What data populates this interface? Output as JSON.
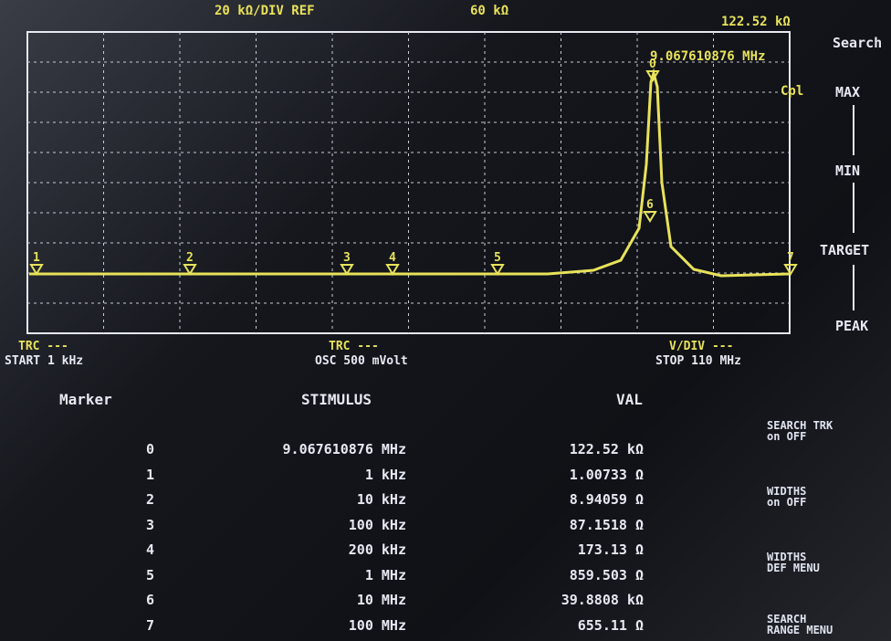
{
  "header": {
    "scale": "20 kΩ/DIV REF",
    "ref": "60 kΩ",
    "ref_value": "122.52 kΩ"
  },
  "marker_readout": "9.067610876 MHz",
  "coupling": "Cpl",
  "search": {
    "title": "Search",
    "options": [
      "MAX",
      "MIN",
      "TARGET",
      "PEAK"
    ]
  },
  "footer": {
    "left": [
      "TRC ---",
      "START 1 kHz"
    ],
    "middle": [
      "TRC ---",
      "OSC 500 mVolt"
    ],
    "right": [
      "V/DIV ---",
      "STOP 110 MHz"
    ]
  },
  "table": {
    "columns": [
      "Marker",
      "STIMULUS",
      "VAL"
    ],
    "rows": [
      [
        "0",
        "9.067610876 MHz",
        "122.52 kΩ"
      ],
      [
        "1",
        "1 kHz",
        "1.00733 Ω"
      ],
      [
        "2",
        "10 kHz",
        "8.94059 Ω"
      ],
      [
        "3",
        "100 kHz",
        "87.1518 Ω"
      ],
      [
        "4",
        "200 kHz",
        "173.13 Ω"
      ],
      [
        "5",
        "1 MHz",
        "859.503 Ω"
      ],
      [
        "6",
        "10 MHz",
        "39.8808 kΩ"
      ],
      [
        "7",
        "100 MHz",
        "655.11 Ω"
      ]
    ]
  },
  "softkeys": [
    [
      "SEARCH TRK",
      "on OFF"
    ],
    [
      "WIDTHS",
      "on OFF"
    ],
    [
      "WIDTHS",
      "DEF MENU"
    ],
    [
      "SEARCH",
      "RANGE MENU"
    ]
  ]
}
